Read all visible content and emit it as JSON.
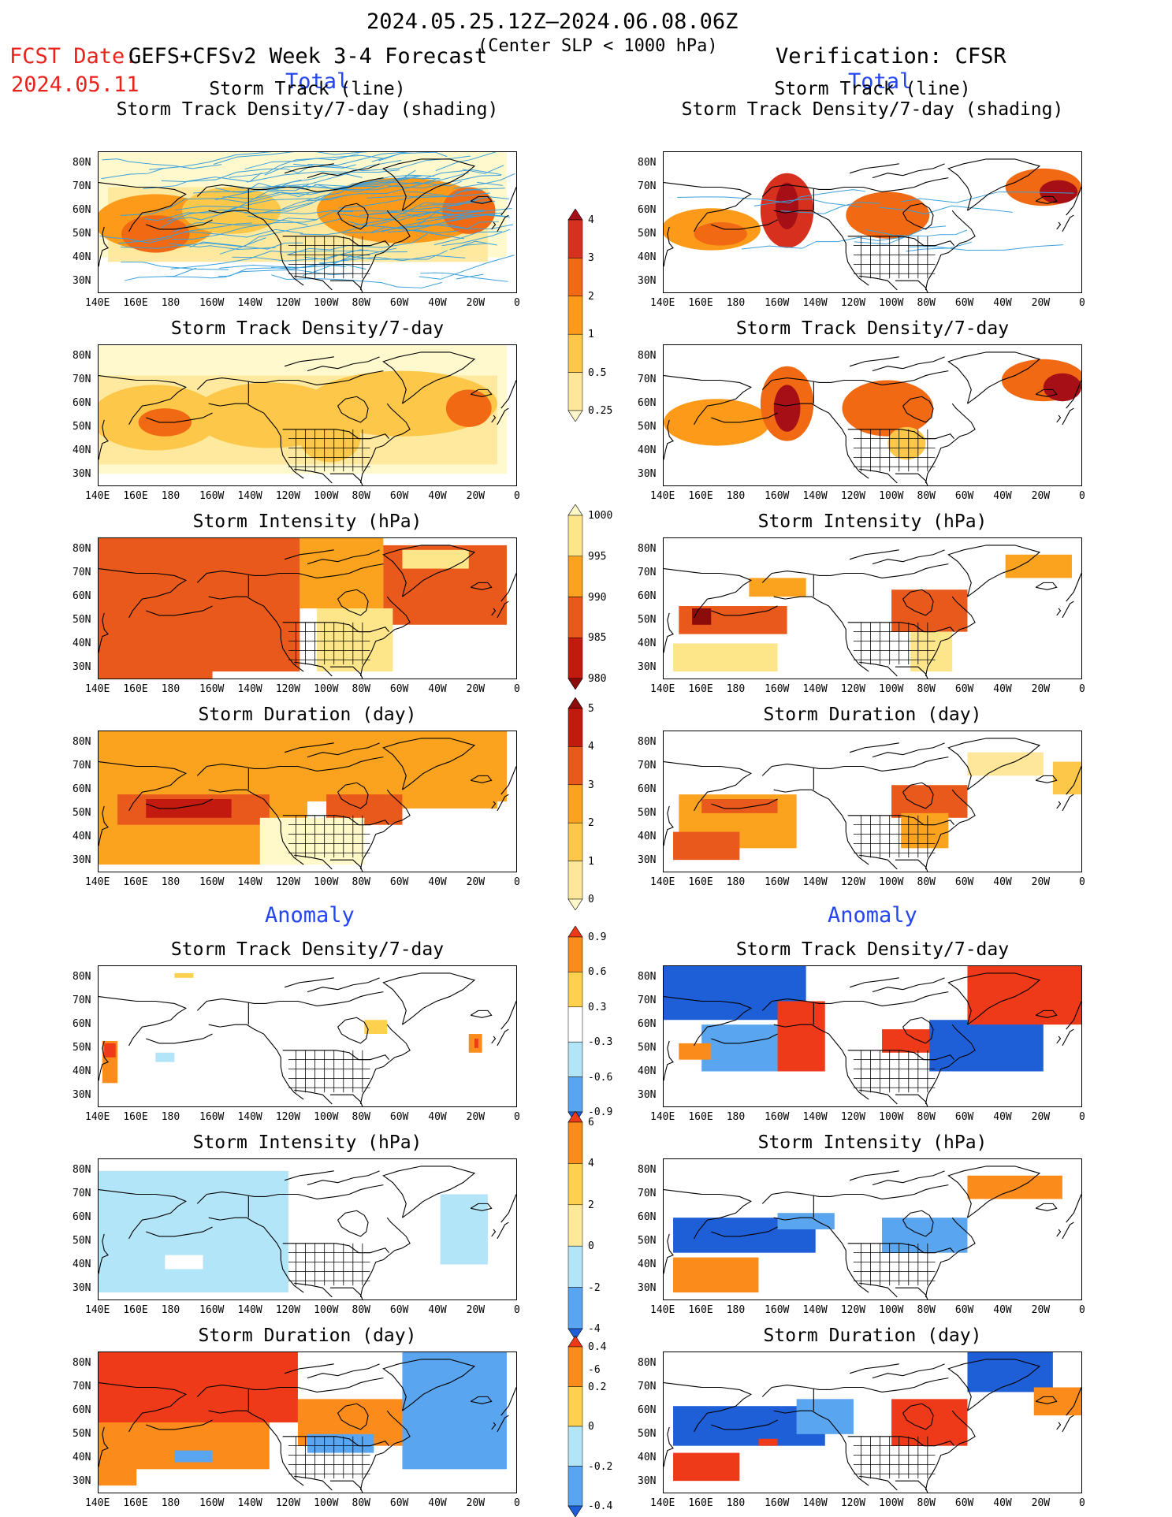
{
  "header": {
    "period": "2024.05.25.12Z–2024.06.08.06Z",
    "fcst_label": "FCST Date:",
    "fcst_date": "2024.05.11",
    "model": "GEFS+CFSv2 Week 3-4 Forecast",
    "criterion": "(Center SLP < 1000 hPa)",
    "verification": "Verification: CFSR"
  },
  "sections": {
    "total_left": "Total",
    "total_right": "Total",
    "anomaly_left": "Anomaly",
    "anomaly_right": "Anomaly"
  },
  "axes": {
    "x_ticks": [
      "140E",
      "160E",
      "180",
      "160W",
      "140W",
      "120W",
      "100W",
      "80W",
      "60W",
      "40W",
      "20W",
      "0"
    ],
    "y_ticks": [
      "80N",
      "70N",
      "60N",
      "50N",
      "40N",
      "30N"
    ]
  },
  "panels": [
    {
      "title": "Storm Track (line)\nStorm Track Density/7-day (shading)",
      "scheme": "density",
      "field": "density-tracks-fcst"
    },
    {
      "title": "Storm Track Density/7-day",
      "scheme": "density",
      "field": "density-fcst"
    },
    {
      "title": "Storm Intensity (hPa)",
      "scheme": "intensity",
      "field": "intensity-fcst"
    },
    {
      "title": "Storm Duration (day)",
      "scheme": "duration",
      "field": "duration-fcst"
    },
    {
      "title": "Storm Track Density/7-day",
      "scheme": "anomaly",
      "field": "density-anom-fcst"
    },
    {
      "title": "Storm Intensity (hPa)",
      "scheme": "anomaly",
      "field": "intensity-anom-fcst"
    },
    {
      "title": "Storm Duration (day)",
      "scheme": "anomaly",
      "field": "duration-anom-fcst"
    },
    {
      "title": "Storm Track (line)\nStorm Track Density/7-day (shading)",
      "scheme": "density",
      "field": "density-tracks-obs"
    },
    {
      "title": "Storm Track Density/7-day",
      "scheme": "density",
      "field": "density-obs"
    },
    {
      "title": "Storm Intensity (hPa)",
      "scheme": "intensity",
      "field": "intensity-obs"
    },
    {
      "title": "Storm Duration (day)",
      "scheme": "duration",
      "field": "duration-obs"
    },
    {
      "title": "Storm Track Density/7-day",
      "scheme": "anomaly",
      "field": "density-anom-obs"
    },
    {
      "title": "Storm Intensity (hPa)",
      "scheme": "anomaly",
      "field": "intensity-anom-obs"
    },
    {
      "title": "Storm Duration (day)",
      "scheme": "anomaly",
      "field": "duration-anom-obs"
    }
  ],
  "colorbars": {
    "density": {
      "labels": [
        "4",
        "3",
        "2",
        "1",
        "0.5",
        "0.25"
      ],
      "colors": [
        "#a50f15",
        "#d7301f",
        "#f16913",
        "#fd9a1a",
        "#fdc84a",
        "#fee79a",
        "#fff8c8"
      ]
    },
    "intensity": {
      "labels": [
        "1000",
        "995",
        "990",
        "985",
        "980"
      ],
      "colors": [
        "#fff8c8",
        "#fde58a",
        "#fba31e",
        "#e8591b",
        "#c21a0f",
        "#8c0b0b"
      ]
    },
    "duration": {
      "labels": [
        "5",
        "4",
        "3",
        "2",
        "1",
        "0"
      ],
      "colors": [
        "#8c0b0b",
        "#c21a0f",
        "#e8591b",
        "#fba31e",
        "#fdc84a",
        "#fee79a",
        "#fff8c8"
      ]
    },
    "density_anom": {
      "labels": [
        "0.9",
        "0.6",
        "0.3",
        "-0.3",
        "-0.6",
        "-0.9"
      ],
      "colors": [
        "#ee3a18",
        "#fb8c1c",
        "#fdd14d",
        "#ffffff",
        "#b3e5f9",
        "#5aa5ef",
        "#1e5fd8"
      ]
    },
    "intensity_anom": {
      "labels": [
        "6",
        "4",
        "2",
        "0",
        "-2",
        "-4",
        "-6"
      ],
      "colors": [
        "#ee3a18",
        "#fb8c1c",
        "#fdd14d",
        "#fde99a",
        "#b3e5f9",
        "#5aa5ef",
        "#1e5fd8"
      ]
    },
    "duration_anom": {
      "labels": [
        "0.4",
        "0.2",
        "0",
        "-0.2",
        "-0.4"
      ],
      "colors": [
        "#ee3a18",
        "#fb8c1c",
        "#fdd14d",
        "#b3e5f9",
        "#5aa5ef",
        "#1e5fd8"
      ]
    }
  }
}
